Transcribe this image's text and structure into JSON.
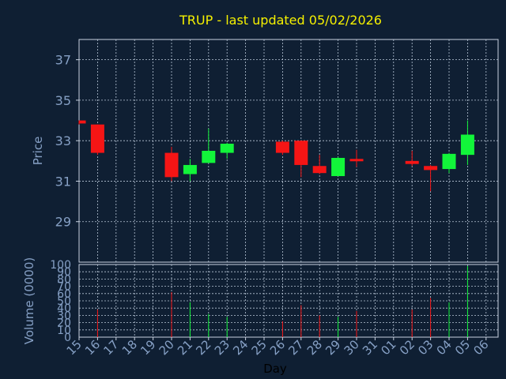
{
  "colors": {
    "background": "#0f1f33",
    "frame": "#c8d2e0",
    "grid": "#b9c7d8",
    "axis_text": "#86a0c5",
    "title": "#f5f000",
    "xlabel": "#000000",
    "up": "#12f53a",
    "down": "#f51515"
  },
  "chart_data": {
    "type": "candlestick",
    "title": "TRUP - last updated 05/02/2026",
    "price_panel": {
      "ylabel": "Price",
      "ylim": [
        27,
        38
      ],
      "yticks": [
        29,
        31,
        33,
        35,
        37
      ]
    },
    "volume_panel": {
      "ylabel": "Volume (0000)",
      "ylim": [
        0,
        100
      ],
      "yticks": [
        0,
        10,
        20,
        30,
        40,
        50,
        60,
        70,
        80,
        90,
        100
      ]
    },
    "xlabel": "Day",
    "x_ticks": [
      "15",
      "16",
      "17",
      "18",
      "19",
      "20",
      "21",
      "22",
      "23",
      "24",
      "25",
      "26",
      "27",
      "28",
      "29",
      "30",
      "31",
      "01",
      "02",
      "03",
      "04",
      "05",
      "06"
    ],
    "candles": [
      {
        "day": "15",
        "open": 34.0,
        "high": 34.0,
        "low": 33.8,
        "close": 33.85,
        "volume": 0
      },
      {
        "day": "16",
        "open": 33.8,
        "high": 33.8,
        "low": 32.3,
        "close": 32.4,
        "volume": 38
      },
      {
        "day": "20",
        "open": 32.4,
        "high": 32.7,
        "low": 31.0,
        "close": 31.2,
        "volume": 62
      },
      {
        "day": "21",
        "open": 31.35,
        "high": 32.1,
        "low": 31.0,
        "close": 31.8,
        "volume": 48
      },
      {
        "day": "22",
        "open": 31.9,
        "high": 33.6,
        "low": 31.9,
        "close": 32.5,
        "volume": 32
      },
      {
        "day": "23",
        "open": 32.4,
        "high": 32.9,
        "low": 32.1,
        "close": 32.85,
        "volume": 28
      },
      {
        "day": "26",
        "open": 32.95,
        "high": 33.0,
        "low": 32.3,
        "close": 32.4,
        "volume": 22
      },
      {
        "day": "27",
        "open": 33.0,
        "high": 33.0,
        "low": 31.2,
        "close": 31.8,
        "volume": 44
      },
      {
        "day": "28",
        "open": 31.75,
        "high": 32.3,
        "low": 31.35,
        "close": 31.4,
        "volume": 30
      },
      {
        "day": "29",
        "open": 31.25,
        "high": 32.2,
        "low": 31.25,
        "close": 32.15,
        "volume": 28
      },
      {
        "day": "30",
        "open": 32.1,
        "high": 32.55,
        "low": 31.7,
        "close": 32.0,
        "volume": 36
      },
      {
        "day": "02",
        "open": 32.0,
        "high": 32.5,
        "low": 31.75,
        "close": 31.85,
        "volume": 38
      },
      {
        "day": "03",
        "open": 31.75,
        "high": 31.8,
        "low": 30.5,
        "close": 31.55,
        "volume": 54
      },
      {
        "day": "04",
        "open": 31.6,
        "high": 32.4,
        "low": 31.4,
        "close": 32.35,
        "volume": 48
      },
      {
        "day": "05",
        "open": 32.3,
        "high": 34.0,
        "low": 31.8,
        "close": 33.3,
        "volume": 98
      }
    ]
  }
}
